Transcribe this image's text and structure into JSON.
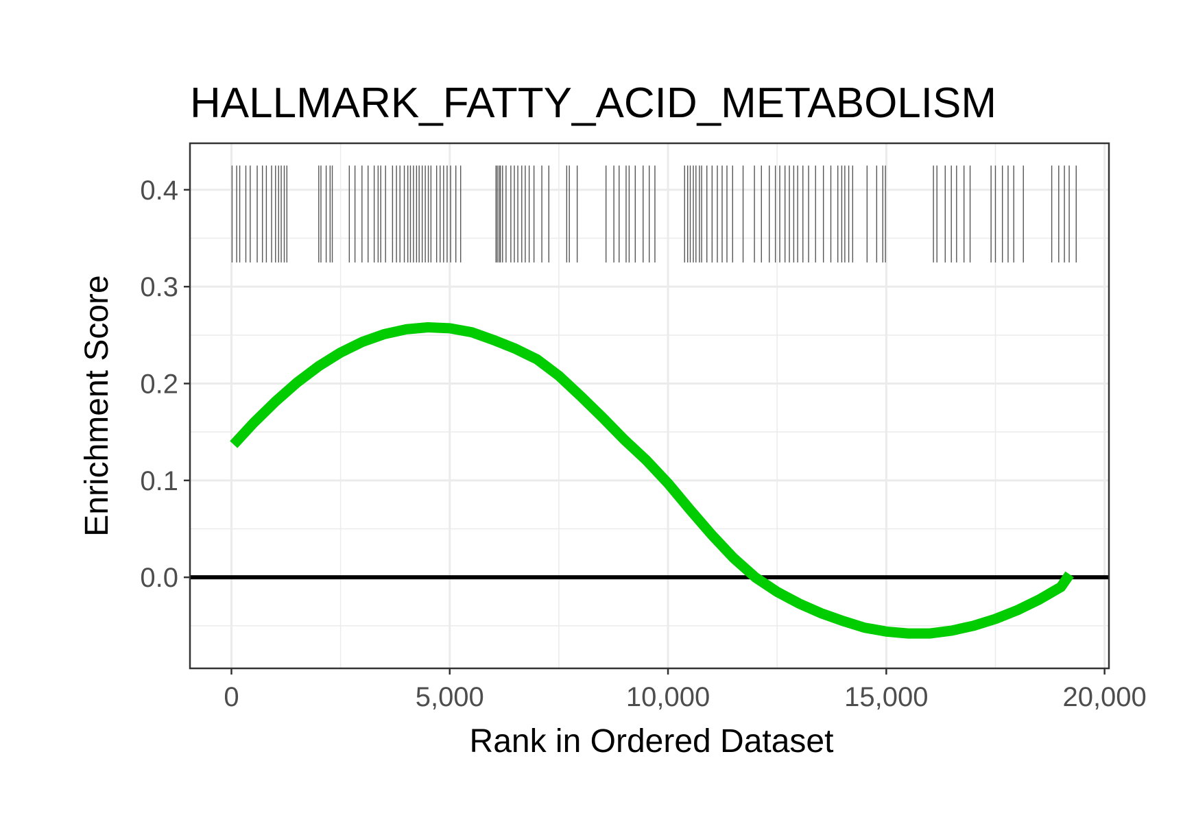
{
  "chart_data": {
    "type": "line",
    "title": "HALLMARK_FATTY_ACID_METABOLISM",
    "xlabel": "Rank in Ordered Dataset",
    "ylabel": "Enrichment Score",
    "xlim": [
      -950,
      20100
    ],
    "ylim": [
      -0.094,
      0.448
    ],
    "x_ticks": [
      0,
      5000,
      10000,
      15000,
      20000
    ],
    "x_tick_labels": [
      "0",
      "5,000",
      "10,000",
      "15,000",
      "20,000"
    ],
    "y_ticks": [
      0.0,
      0.1,
      0.2,
      0.3,
      0.4
    ],
    "y_tick_labels": [
      "0.0",
      "0.1",
      "0.2",
      "0.3",
      "0.4"
    ],
    "grid": true,
    "horizontal_reference_line": {
      "y": 0,
      "color": "#000000"
    },
    "series": [
      {
        "color": "#00cc00",
        "x": [
          50,
          500,
          1000,
          1500,
          2000,
          2500,
          3000,
          3500,
          4000,
          4500,
          5000,
          5500,
          6000,
          6500,
          7000,
          7500,
          8000,
          8500,
          9000,
          9500,
          10000,
          10500,
          11000,
          11500,
          12000,
          12500,
          13000,
          13500,
          14000,
          14500,
          15000,
          15500,
          16000,
          16500,
          17000,
          17500,
          18000,
          18500,
          19000,
          19200
        ],
        "y": [
          0.137,
          0.159,
          0.181,
          0.201,
          0.218,
          0.232,
          0.243,
          0.251,
          0.256,
          0.258,
          0.257,
          0.253,
          0.245,
          0.236,
          0.225,
          0.208,
          0.187,
          0.165,
          0.142,
          0.121,
          0.097,
          0.07,
          0.044,
          0.02,
          0.0,
          -0.015,
          -0.027,
          -0.037,
          -0.045,
          -0.052,
          -0.056,
          -0.058,
          -0.058,
          -0.055,
          -0.05,
          -0.043,
          -0.034,
          -0.023,
          -0.01,
          0.003
        ]
      }
    ],
    "gene_hits": {
      "y_range": [
        0.325,
        0.425
      ],
      "x": [
        15,
        120,
        190,
        330,
        430,
        590,
        710,
        800,
        920,
        1010,
        1080,
        1140,
        1210,
        1270,
        2000,
        2050,
        2170,
        2260,
        2310,
        2700,
        2830,
        2990,
        3130,
        3270,
        3360,
        3420,
        3530,
        3690,
        3780,
        3860,
        3960,
        4040,
        4100,
        4170,
        4240,
        4300,
        4370,
        4440,
        4510,
        4570,
        4700,
        4780,
        4860,
        4940,
        5020,
        5140,
        5250,
        6060,
        6090,
        6130,
        6160,
        6210,
        6290,
        6400,
        6480,
        6560,
        6650,
        6730,
        6820,
        6930,
        7110,
        7270,
        7680,
        7740,
        7920,
        8580,
        8760,
        8880,
        9040,
        9110,
        9250,
        9430,
        9570,
        9700,
        10380,
        10450,
        10510,
        10580,
        10640,
        10720,
        10770,
        10890,
        11010,
        11130,
        11240,
        11350,
        11480,
        11720,
        11980,
        12140,
        12320,
        12460,
        12560,
        12680,
        12780,
        12880,
        12970,
        13090,
        13220,
        13380,
        13560,
        13730,
        13890,
        13980,
        14050,
        14140,
        14230,
        14560,
        14780,
        14920,
        14980,
        16080,
        16160,
        16350,
        16490,
        16610,
        16780,
        16920,
        17400,
        17500,
        17660,
        17790,
        17920,
        18140,
        18790,
        18950,
        19080,
        19190,
        19350
      ]
    }
  }
}
